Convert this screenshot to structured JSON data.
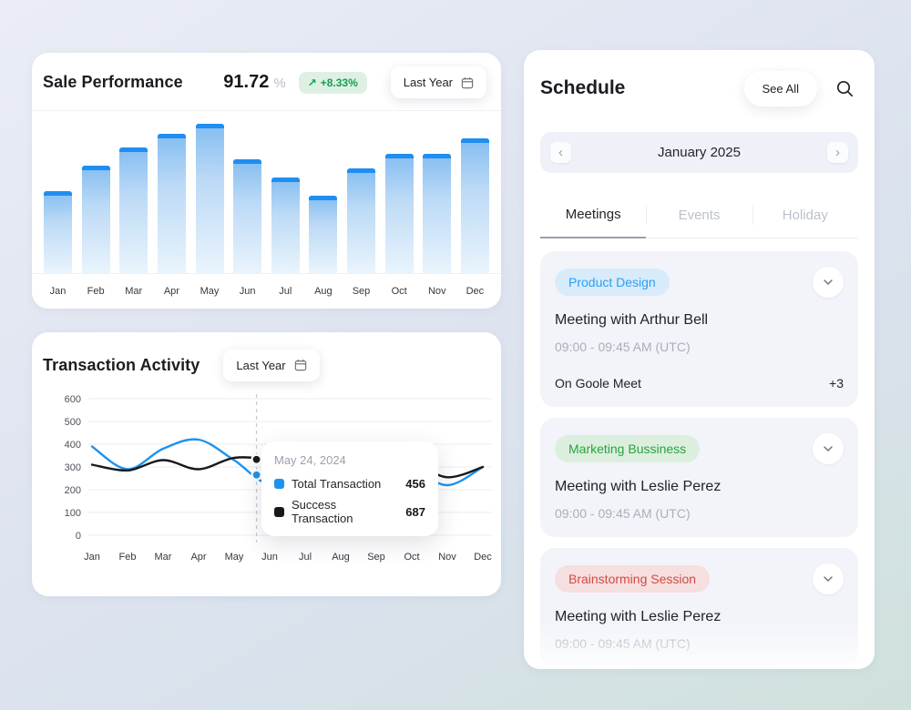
{
  "icons": {
    "trend_up": "↗",
    "chevron_left": "‹",
    "chevron_right": "›"
  },
  "colors": {
    "accent_blue": "#1d93f0",
    "line_black": "#17191d",
    "growth_green": "#149e4f",
    "badge_blue_bg": "#d8ebfb",
    "badge_green_bg": "#dcefdf",
    "badge_red_bg": "#f6dfdf"
  },
  "sale_performance": {
    "title": "Sale Performance",
    "value": "91.72",
    "unit": "%",
    "growth_badge": "+8.33%",
    "period_label": "Last Year",
    "chart_data": {
      "type": "bar",
      "categories": [
        "Jan",
        "Feb",
        "Mar",
        "Apr",
        "May",
        "Jun",
        "Jul",
        "Aug",
        "Sep",
        "Oct",
        "Nov",
        "Dec"
      ],
      "values": [
        55,
        72,
        84,
        93,
        100,
        76,
        64,
        52,
        70,
        80,
        80,
        90
      ],
      "value_unit": "percent-of-max",
      "bar_top_color": "#1f8ef1"
    }
  },
  "transaction_activity": {
    "title": "Transaction Activity",
    "period_label": "Last Year",
    "chart_data": {
      "type": "line",
      "categories": [
        "Jan",
        "Feb",
        "Mar",
        "Apr",
        "May",
        "Jun",
        "Jul",
        "Aug",
        "Sep",
        "Oct",
        "Nov",
        "Dec"
      ],
      "ylim": [
        0,
        600
      ],
      "yticks": [
        0,
        100,
        200,
        300,
        400,
        500,
        600
      ],
      "series": [
        {
          "name": "Total Transaction",
          "color": "#1d93f0",
          "values": [
            390,
            290,
            380,
            420,
            330,
            230,
            360,
            390,
            370,
            300,
            220,
            300
          ]
        },
        {
          "name": "Success Transaction",
          "color": "#17191d",
          "values": [
            310,
            285,
            330,
            290,
            340,
            330,
            280,
            310,
            330,
            320,
            255,
            300
          ]
        }
      ],
      "marker_index": 4.63,
      "markers": [
        {
          "series": "Total Transaction",
          "value": 265
        },
        {
          "series": "Success Transaction",
          "value": 333
        }
      ],
      "grid": true
    },
    "tooltip": {
      "date": "May 24, 2024",
      "items": [
        {
          "label": "Total Transaction",
          "value": "456",
          "color": "#1d93f0"
        },
        {
          "label": "Success Transaction",
          "value": "687",
          "color": "#17191d"
        }
      ]
    }
  },
  "schedule": {
    "title": "Schedule",
    "see_all_label": "See All",
    "month_selector": {
      "label": "January 2025"
    },
    "tabs": [
      {
        "label": "Meetings",
        "active": true
      },
      {
        "label": "Events",
        "active": false
      },
      {
        "label": "Holiday",
        "active": false
      }
    ],
    "meetings": [
      {
        "category": "Product Design",
        "category_color": "#2b9ff2",
        "category_bg": "#d8ebfb",
        "title": "Meeting with Arthur Bell",
        "time": "09:00 - 09:45 AM (UTC)",
        "platform": "On Goole Meet",
        "extra_attendees": "+3"
      },
      {
        "category": "Marketing Bussiness",
        "category_color": "#27a43c",
        "category_bg": "#dcefdf",
        "title": "Meeting with Leslie Perez",
        "time": "09:00 - 09:45 AM (UTC)"
      },
      {
        "category": "Brainstorming Session",
        "category_color": "#d24a43",
        "category_bg": "#f6dfdf",
        "title": "Meeting with Leslie Perez",
        "time": "09:00 - 09:45 AM (UTC)"
      }
    ]
  }
}
